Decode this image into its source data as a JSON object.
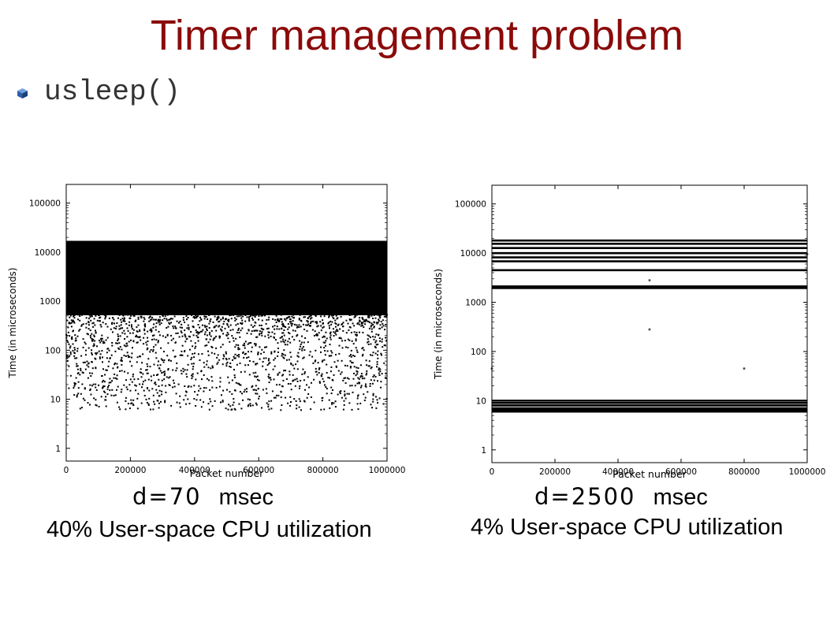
{
  "slide": {
    "title": "Timer management problem",
    "bullet": "usleep()",
    "accent_color": "#8b0a0a",
    "bullet_icon": "blue-cube-bullet-icon"
  },
  "captions": [
    {
      "delta_symbol": "d=70",
      "unit": "msec",
      "utilization": "40% User-space CPU utilization"
    },
    {
      "delta_symbol": "d=2500",
      "unit": "msec",
      "utilization": "4% User-space CPU utilization"
    }
  ],
  "chart_data": [
    {
      "type": "scatter",
      "title": "",
      "xlabel": "Packet number",
      "ylabel": "Time (in microseconds)",
      "x_range": [
        0,
        1000000
      ],
      "y_range": [
        0.55,
        240000
      ],
      "y_scale": "log",
      "x_ticks": [
        "0",
        "200000",
        "400000",
        "600000",
        "800000",
        "1000000"
      ],
      "y_ticks": [
        "1",
        "10",
        "100",
        "1000",
        "10000",
        "100000"
      ],
      "grid": false,
      "series": [
        {
          "description_of_data": "dense band",
          "y_min": 6,
          "y_max": 17000,
          "dense_above": 600
        }
      ]
    },
    {
      "type": "scatter",
      "title": "",
      "xlabel": "Packet number",
      "ylabel": "Time (in microseconds)",
      "x_range": [
        0,
        1000000
      ],
      "y_range": [
        0.55,
        240000
      ],
      "y_scale": "log",
      "x_ticks": [
        "0",
        "200000",
        "400000",
        "600000",
        "800000",
        "1000000"
      ],
      "y_ticks": [
        "1",
        "10",
        "100",
        "1000",
        "10000",
        "100000"
      ],
      "grid": false,
      "bands": [
        18000,
        15500,
        12700,
        10000,
        8200,
        6800,
        4500,
        2100,
        1950,
        10,
        9,
        8,
        7,
        6.5,
        6
      ],
      "outliers": [
        {
          "x": 500000,
          "y": 2800
        },
        {
          "x": 500000,
          "y": 280
        },
        {
          "x": 800000,
          "y": 45
        },
        {
          "x": 0,
          "y": 45
        },
        {
          "x": 1000000,
          "y": 9500
        }
      ]
    }
  ]
}
